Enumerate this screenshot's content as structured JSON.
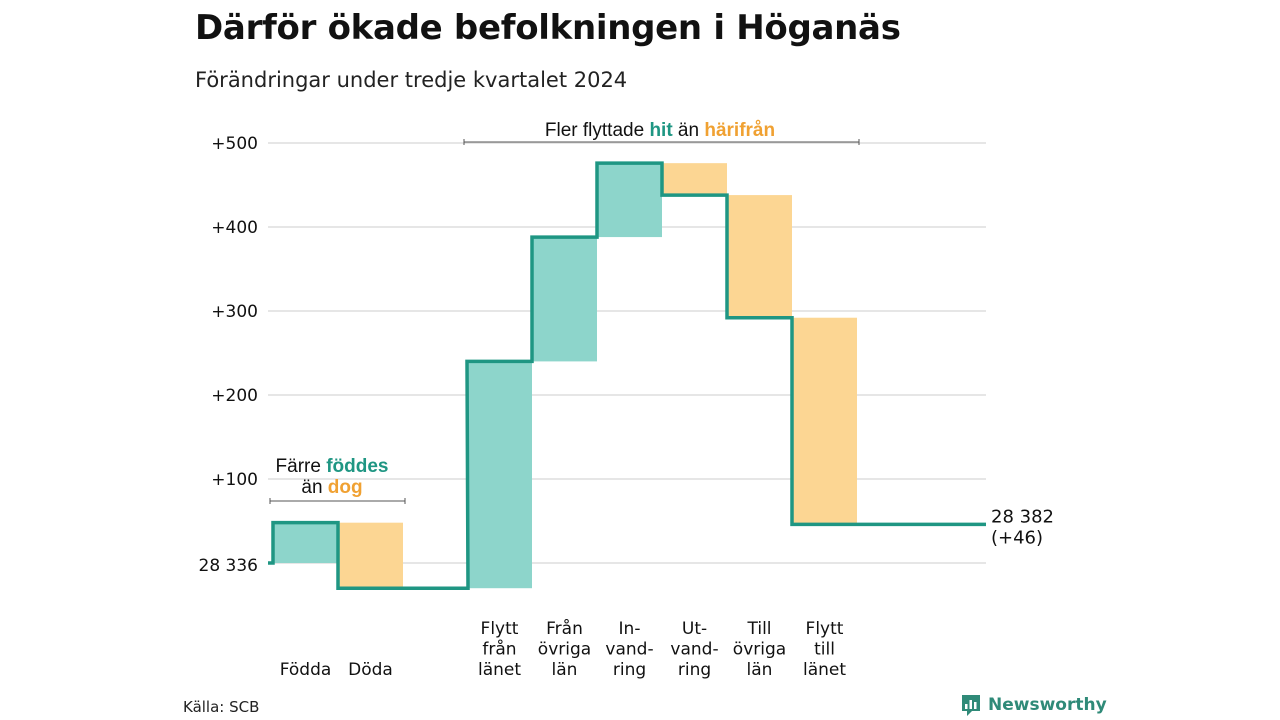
{
  "title": "Därför ökade befolkningen i Höganäs",
  "subtitle": "Förändringar under tredje kvartalet 2024",
  "source": "Källa: SCB",
  "brand": "Newsworthy",
  "colors": {
    "line": "#1f9683",
    "increase": "#8dd5cb",
    "decrease": "#fcd693",
    "teal_text": "#1f9683",
    "orange_text": "#f0a132",
    "grid": "#dddddd"
  },
  "chart_data": {
    "type": "waterfall",
    "start_label": "28 336",
    "end_label_line1": "28 382",
    "end_label_line2": "(+46)",
    "y_ticks": [
      {
        "value": 100,
        "label": "+100"
      },
      {
        "value": 200,
        "label": "+200"
      },
      {
        "value": 300,
        "label": "+300"
      },
      {
        "value": 400,
        "label": "+400"
      },
      {
        "value": 500,
        "label": "+500"
      }
    ],
    "ylim": [
      -30,
      510
    ],
    "steps": [
      {
        "label_lines": [
          "Födda"
        ],
        "change": 48,
        "type": "increase"
      },
      {
        "label_lines": [
          "Döda"
        ],
        "change": -78,
        "type": "decrease"
      },
      {
        "label_lines": [],
        "change": 0,
        "type": "gap"
      },
      {
        "label_lines": [
          "Flytt",
          "från",
          "länet"
        ],
        "change": 270,
        "type": "increase"
      },
      {
        "label_lines": [
          "Från",
          "övriga",
          "län"
        ],
        "change": 148,
        "type": "increase"
      },
      {
        "label_lines": [
          "In-",
          "vand-",
          "ring"
        ],
        "change": 88,
        "type": "increase"
      },
      {
        "label_lines": [
          "Ut-",
          "vand-",
          "ring"
        ],
        "change": -38,
        "type": "decrease"
      },
      {
        "label_lines": [
          "Till",
          "övriga",
          "län"
        ],
        "change": -146,
        "type": "decrease"
      },
      {
        "label_lines": [
          "Flytt",
          "till",
          "länet"
        ],
        "change": -246,
        "type": "decrease"
      }
    ],
    "annotations": [
      {
        "pre": "Färre ",
        "hit": "föddes",
        "mid": "än ",
        "away": "dog"
      },
      {
        "pre": "Fler flyttade ",
        "hit": "hit",
        "mid": " än ",
        "away": "härifrån"
      }
    ]
  }
}
